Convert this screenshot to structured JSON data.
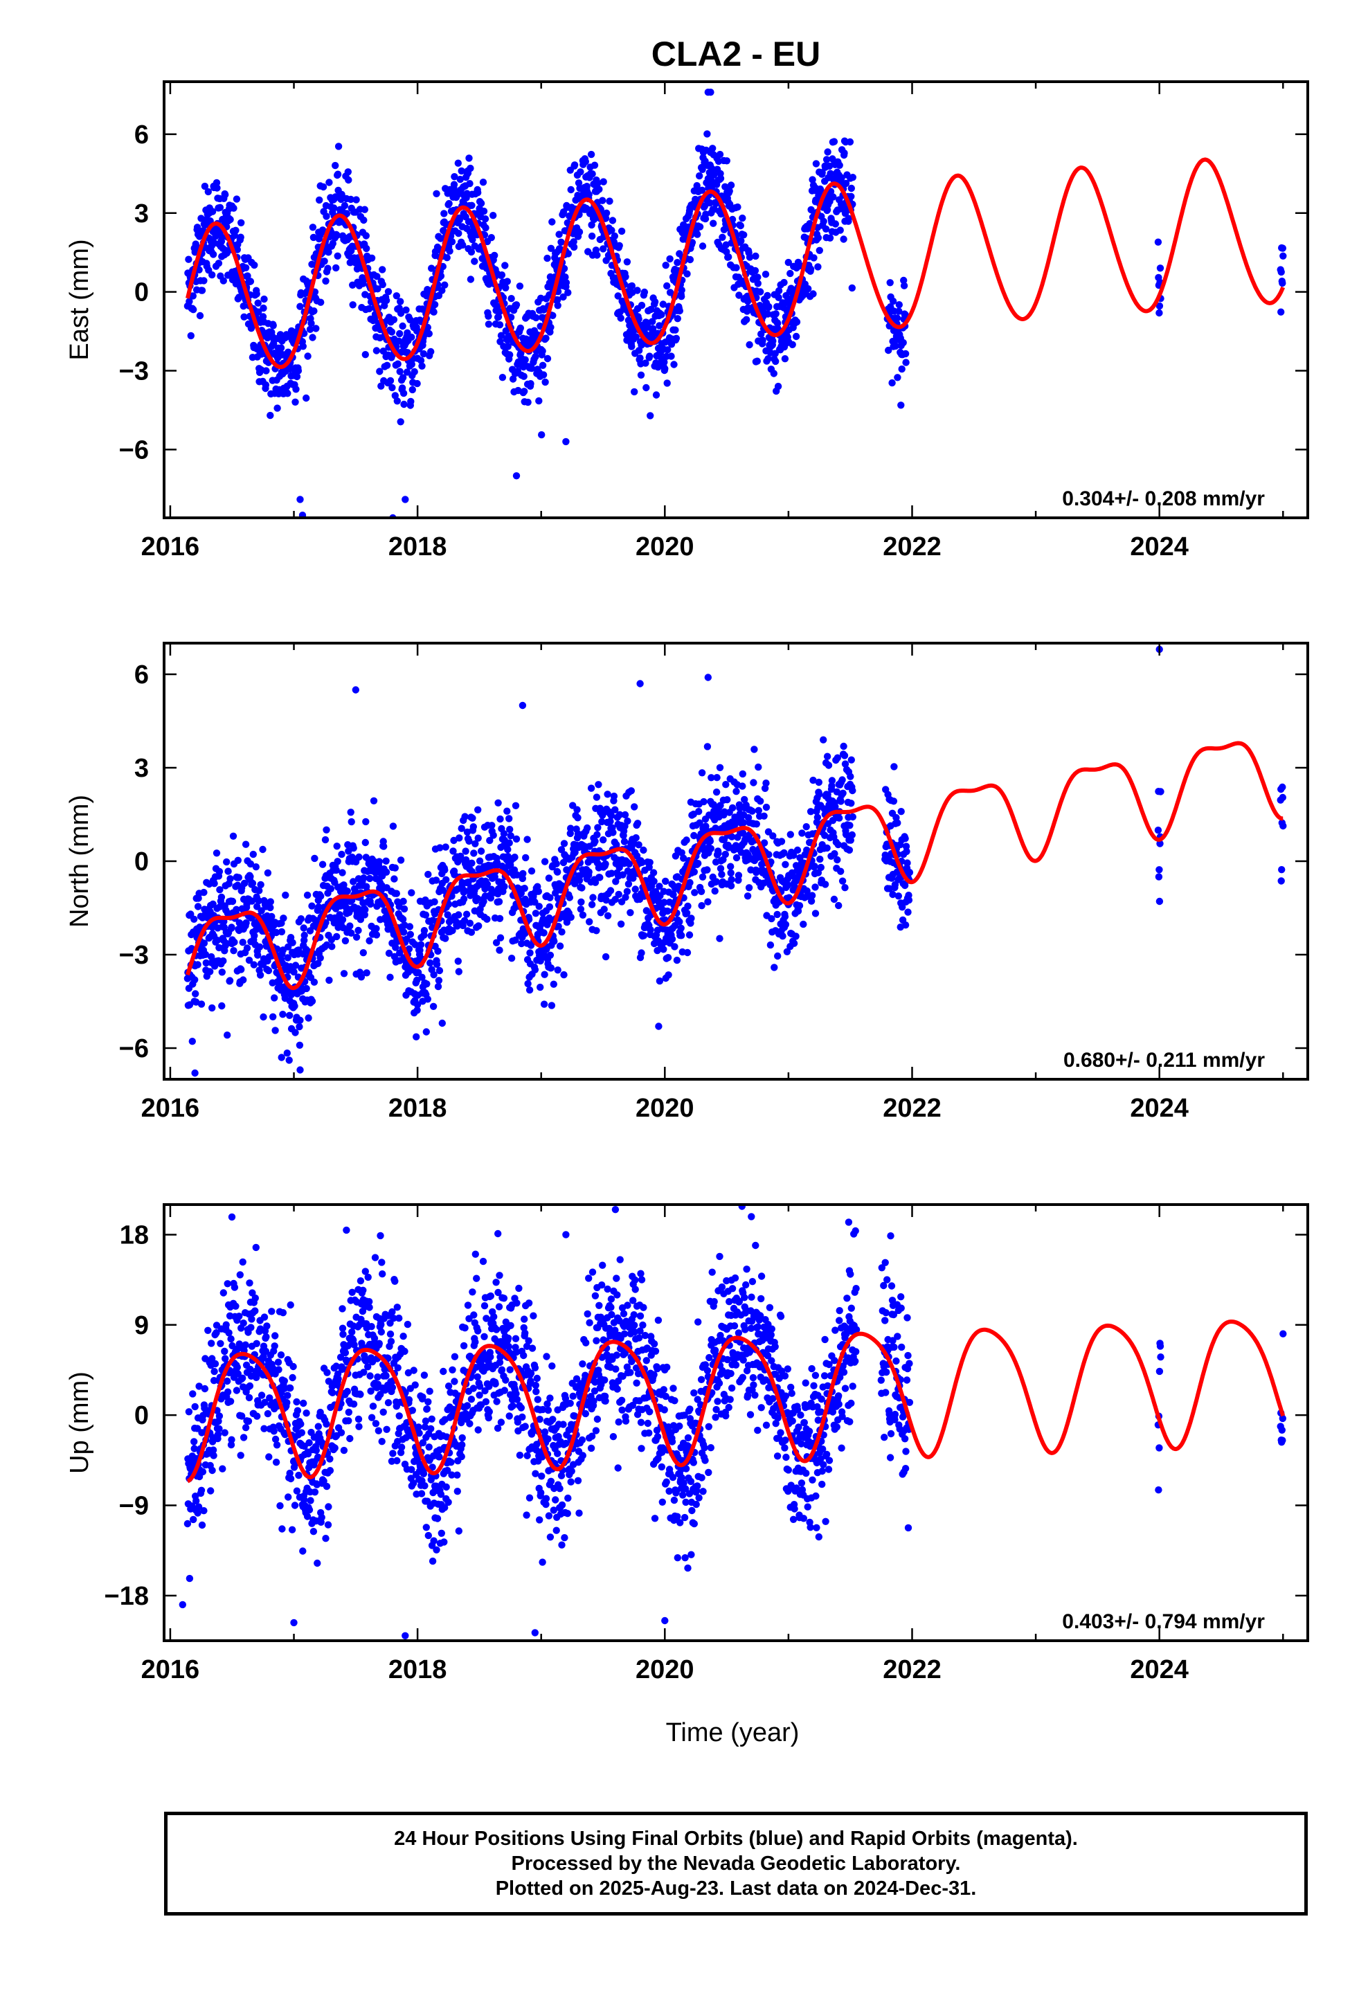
{
  "title": "CLA2 - EU",
  "xlabel": "Time (year)",
  "x_tick_labels": [
    "2016",
    "2018",
    "2020",
    "2022",
    "2024"
  ],
  "colors": {
    "data": "#0000ff",
    "model": "#ff0000",
    "frame": "#000000"
  },
  "chart_data": [
    {
      "type": "scatter",
      "ylabel": "East (mm)",
      "rate_text": "0.304+/- 0.208 mm/yr",
      "xlim": [
        2015.95,
        2025.2
      ],
      "ylim": [
        -8.6,
        8.0
      ],
      "yticks": [
        -6,
        -3,
        0,
        3,
        6
      ],
      "y_tick_labels": [
        "−6",
        "−3",
        "0",
        "3",
        "6"
      ],
      "trend": {
        "intercept": -0.4,
        "rate": 0.304,
        "annual_amp": 2.8,
        "annual_peak": 0.38,
        "semi_amp": 0.15,
        "semi_peak": 0.3
      },
      "noise_sd": 0.95,
      "data_ranges": [
        [
          2016.14,
          2021.52
        ],
        [
          2021.8,
          2021.95
        ],
        [
          2023.99,
          2024.01
        ],
        [
          2024.98,
          2025.0
        ]
      ],
      "outliers": [
        [
          2017.05,
          -7.9
        ],
        [
          2017.07,
          -8.5
        ],
        [
          2017.9,
          -7.9
        ],
        [
          2018.8,
          -7.0
        ],
        [
          2020.35,
          7.6
        ],
        [
          2020.37,
          7.6
        ],
        [
          2017.8,
          -8.6
        ],
        [
          2019.2,
          -5.7
        ]
      ]
    },
    {
      "type": "scatter",
      "ylabel": "North (mm)",
      "rate_text": "0.680+/- 0.211 mm/yr",
      "xlim": [
        2015.95,
        2025.2
      ],
      "ylim": [
        -7.0,
        7.0
      ],
      "yticks": [
        -6,
        -3,
        0,
        3,
        6
      ],
      "y_tick_labels": [
        "−6",
        "−3",
        "0",
        "3",
        "6"
      ],
      "trend": {
        "intercept": -3.0,
        "rate": 0.68,
        "annual_amp": 1.3,
        "annual_peak": 0.5,
        "semi_amp": 0.45,
        "semi_peak": 0.25
      },
      "noise_sd": 1.0,
      "data_ranges": [
        [
          2016.14,
          2021.52
        ],
        [
          2021.78,
          2021.98
        ],
        [
          2023.99,
          2024.01
        ],
        [
          2024.98,
          2025.0
        ]
      ],
      "outliers": [
        [
          2016.2,
          -6.8
        ],
        [
          2017.05,
          -6.7
        ],
        [
          2016.9,
          -6.3
        ],
        [
          2017.5,
          5.5
        ],
        [
          2018.2,
          -5.2
        ],
        [
          2018.85,
          5.0
        ],
        [
          2019.8,
          5.7
        ],
        [
          2020.35,
          5.9
        ],
        [
          2024.0,
          6.8
        ],
        [
          2019.95,
          -5.3
        ]
      ]
    },
    {
      "type": "scatter",
      "ylabel": "Up (mm)",
      "rate_text": "0.403+/- 0.794 mm/yr",
      "xlim": [
        2015.95,
        2025.2
      ],
      "ylim": [
        -22.5,
        21.0
      ],
      "yticks": [
        -18,
        -9,
        0,
        9,
        18
      ],
      "y_tick_labels": [
        "−18",
        "−9",
        "0",
        "9",
        "18"
      ],
      "trend": {
        "intercept": 0.5,
        "rate": 0.403,
        "annual_amp": 6.2,
        "annual_peak": 0.62,
        "semi_amp": 1.0,
        "semi_peak": 0.4
      },
      "noise_sd": 4.0,
      "data_ranges": [
        [
          2016.14,
          2021.55
        ],
        [
          2021.75,
          2021.98
        ],
        [
          2023.99,
          2024.01
        ],
        [
          2024.98,
          2025.0
        ]
      ],
      "outliers": [
        [
          2016.1,
          -18.9
        ],
        [
          2017.0,
          -20.7
        ],
        [
          2017.9,
          -22.0
        ],
        [
          2018.95,
          -21.7
        ],
        [
          2019.6,
          20.5
        ],
        [
          2020.0,
          -20.5
        ],
        [
          2020.7,
          19.8
        ],
        [
          2017.7,
          17.9
        ],
        [
          2018.65,
          18.1
        ],
        [
          2019.2,
          18.0
        ]
      ]
    }
  ],
  "footer": {
    "line1": "24 Hour Positions Using Final Orbits (blue) and Rapid Orbits (magenta).",
    "line2": "Processed by the Nevada Geodetic Laboratory.",
    "line3": "Plotted on 2025-Aug-23. Last data on 2024-Dec-31."
  }
}
